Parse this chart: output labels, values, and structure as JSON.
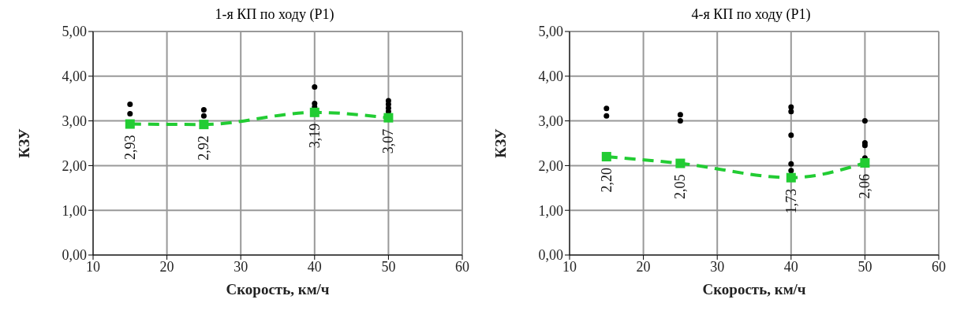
{
  "chart_data": [
    {
      "type": "scatter",
      "title": "1-я КП по ходу (Р1)",
      "xlabel": "Скорость,  км/ч",
      "ylabel": "КЗУ",
      "xlim": [
        10,
        60
      ],
      "xticks": [
        10,
        20,
        30,
        40,
        50,
        60
      ],
      "ylim": [
        0,
        5
      ],
      "yticks": [
        {
          "value": 0,
          "label": "0,00"
        },
        {
          "value": 1,
          "label": "1,00"
        },
        {
          "value": 2,
          "label": "2,00"
        },
        {
          "value": 3,
          "label": "3,00"
        },
        {
          "value": 4,
          "label": "4,00"
        },
        {
          "value": 5,
          "label": "5,00"
        }
      ],
      "grid": true,
      "series": [
        {
          "color": "#000000",
          "marker": "circle",
          "x": [
            15,
            15,
            25,
            25,
            40,
            40,
            40,
            50,
            50,
            50,
            50
          ],
          "values": [
            3.37,
            3.16,
            3.25,
            3.11,
            3.76,
            3.39,
            3.31,
            3.45,
            3.37,
            3.29,
            3.21
          ]
        },
        {
          "type": "line",
          "color": "#22cc33",
          "marker": "square",
          "line_style": "dashed",
          "x": [
            15,
            25,
            40,
            50
          ],
          "values": [
            2.93,
            2.92,
            3.19,
            3.07
          ],
          "value_labels": [
            "2,93",
            "2,92",
            "3,19",
            "3,07"
          ]
        }
      ]
    },
    {
      "type": "scatter",
      "title": "4-я КП по ходу (Р1)",
      "xlabel": "Скорость,  км/ч",
      "ylabel": "КЗУ",
      "xlim": [
        10,
        60
      ],
      "xticks": [
        10,
        20,
        30,
        40,
        50,
        60
      ],
      "ylim": [
        0,
        5
      ],
      "yticks": [
        {
          "value": 0,
          "label": "0,00"
        },
        {
          "value": 1,
          "label": "1,00"
        },
        {
          "value": 2,
          "label": "2,00"
        },
        {
          "value": 3,
          "label": "3,00"
        },
        {
          "value": 4,
          "label": "4,00"
        },
        {
          "value": 5,
          "label": "5,00"
        }
      ],
      "grid": true,
      "series": [
        {
          "color": "#000000",
          "marker": "circle",
          "x": [
            15,
            15,
            25,
            25,
            40,
            40,
            40,
            40,
            40,
            50,
            50,
            50,
            50
          ],
          "values": [
            3.28,
            3.11,
            3.14,
            3.0,
            3.31,
            3.21,
            2.68,
            2.04,
            1.89,
            3.0,
            2.51,
            2.45,
            2.17
          ]
        },
        {
          "type": "line",
          "color": "#22cc33",
          "marker": "square",
          "line_style": "dashed",
          "x": [
            15,
            25,
            40,
            50
          ],
          "values": [
            2.2,
            2.05,
            1.73,
            2.06
          ],
          "value_labels": [
            "2,20",
            "2,05",
            "1,73",
            "2,06"
          ]
        }
      ]
    }
  ]
}
